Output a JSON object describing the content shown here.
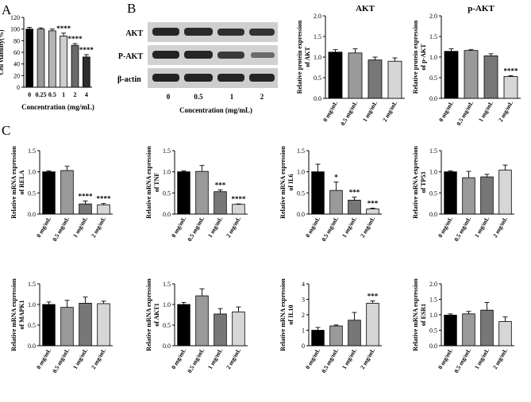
{
  "panels": {
    "A": "A",
    "B": "B",
    "C": "C"
  },
  "blot": {
    "rows": [
      "AKT",
      "P-AKT",
      "β-actin"
    ],
    "lanes": [
      "0",
      "0.5",
      "1",
      "2"
    ],
    "xlabel": "Concentration (mg/mL)"
  },
  "colors": {
    "dose0": "#000000",
    "dose05": "#9a9a9a",
    "dose1": "#777777",
    "dose2": "#d6d6d6",
    "panelA": [
      "#000000",
      "#9a9a9a",
      "#b5b5b5",
      "#cfcfcf",
      "#6a6a6a",
      "#2e2e2e"
    ]
  },
  "chart_data": [
    {
      "id": "A",
      "type": "bar",
      "title": "",
      "categories": [
        "0",
        "0.25",
        "0.5",
        "1",
        "2",
        "4"
      ],
      "values": [
        100,
        100,
        97,
        88,
        72,
        52
      ],
      "errors": [
        3,
        2,
        3,
        5,
        3,
        4
      ],
      "annotations": [
        "",
        "",
        "",
        "****",
        "****",
        "****"
      ],
      "xlabel": "Concentration (mg/mL)",
      "ylabel": "Cell viability(%)",
      "ylim": [
        0,
        120
      ],
      "yticks": [
        "0",
        "20",
        "40",
        "60",
        "80",
        "100",
        "120"
      ]
    },
    {
      "id": "AKT",
      "type": "bar",
      "title": "AKT",
      "categories": [
        "0 mg/mL",
        "0.5 mg/mL",
        "1 mg/mL",
        "2 mg/mL"
      ],
      "values": [
        1.12,
        1.1,
        0.93,
        0.9
      ],
      "errors": [
        0.06,
        0.1,
        0.07,
        0.08
      ],
      "annotations": [
        "",
        "",
        "",
        ""
      ],
      "xlabel": "",
      "ylabel": "Relative protein expression of AKT",
      "ylim": [
        0,
        2.0
      ],
      "yticks": [
        "0.0",
        "0.5",
        "1.0",
        "1.5",
        "2.0"
      ]
    },
    {
      "id": "pAKT",
      "type": "bar",
      "title": "p-AKT",
      "categories": [
        "0 mg/mL",
        "0.5 mg/mL",
        "1 mg/mL",
        "2 mg/mL"
      ],
      "values": [
        1.14,
        1.16,
        1.03,
        0.53
      ],
      "errors": [
        0.06,
        0.02,
        0.05,
        0.02
      ],
      "annotations": [
        "",
        "",
        "",
        "****"
      ],
      "xlabel": "",
      "ylabel": "Relative protein expression of p-AKT",
      "ylim": [
        0,
        2.0
      ],
      "yticks": [
        "0.0",
        "0.5",
        "1.0",
        "1.5",
        "2.0"
      ]
    },
    {
      "id": "RELA",
      "type": "bar",
      "title": "",
      "categories": [
        "0 mg/mL",
        "0.5 mg/mL",
        "1 mg/mL",
        "2 mg/mL"
      ],
      "values": [
        1.0,
        1.03,
        0.24,
        0.22
      ],
      "errors": [
        0.02,
        0.1,
        0.07,
        0.03
      ],
      "annotations": [
        "",
        "",
        "****",
        "****"
      ],
      "xlabel": "",
      "ylabel": "Relative mRNA expression of RELA",
      "ylim": [
        0,
        1.5
      ],
      "yticks": [
        "0.0",
        "0.5",
        "1.0",
        "1.5"
      ]
    },
    {
      "id": "TNF",
      "type": "bar",
      "title": "",
      "categories": [
        "0 mg/mL",
        "0.5 mg/mL",
        "1 mg/mL",
        "2 mg/mL"
      ],
      "values": [
        1.0,
        1.01,
        0.53,
        0.23
      ],
      "errors": [
        0.02,
        0.14,
        0.04,
        0.01
      ],
      "annotations": [
        "",
        "",
        "***",
        "****"
      ],
      "xlabel": "",
      "ylabel": "Relative mRNA expression of TNF",
      "ylim": [
        0,
        1.5
      ],
      "yticks": [
        "0.0",
        "0.5",
        "1.0",
        "1.5"
      ]
    },
    {
      "id": "IL6",
      "type": "bar",
      "title": "",
      "categories": [
        "0 mg/mL",
        "0.5 mg/mL",
        "1 mg/mL",
        "2 mg/mL"
      ],
      "values": [
        1.0,
        0.56,
        0.33,
        0.12
      ],
      "errors": [
        0.18,
        0.2,
        0.07,
        0.02
      ],
      "annotations": [
        "",
        "*",
        "***",
        "***"
      ],
      "xlabel": "",
      "ylabel": "Relative mRNA expression of IL6",
      "ylim": [
        0,
        1.5
      ],
      "yticks": [
        "0.0",
        "0.5",
        "1.0",
        "1.5"
      ]
    },
    {
      "id": "TP53",
      "type": "bar",
      "title": "",
      "categories": [
        "0 mg/mL",
        "0.5 mg/mL",
        "1 mg/mL",
        "2 mg/mL"
      ],
      "values": [
        1.0,
        0.86,
        0.88,
        1.04
      ],
      "errors": [
        0.02,
        0.15,
        0.06,
        0.12
      ],
      "annotations": [
        "",
        "",
        "",
        ""
      ],
      "xlabel": "",
      "ylabel": "Relative mRNA expression of TP53",
      "ylim": [
        0,
        1.5
      ],
      "yticks": [
        "0.0",
        "0.5",
        "1.0",
        "1.5"
      ]
    },
    {
      "id": "MAPK1",
      "type": "bar",
      "title": "",
      "categories": [
        "0 mg/mL",
        "0.5 mg/mL",
        "1 mg/mL",
        "2 mg/mL"
      ],
      "values": [
        1.0,
        0.93,
        1.03,
        1.02
      ],
      "errors": [
        0.06,
        0.17,
        0.15,
        0.06
      ],
      "annotations": [
        "",
        "",
        "",
        ""
      ],
      "xlabel": "",
      "ylabel": "Relative mRNA expression of MAPK1",
      "ylim": [
        0,
        1.5
      ],
      "yticks": [
        "0.0",
        "0.5",
        "1.0",
        "1.5"
      ]
    },
    {
      "id": "AKT1",
      "type": "bar",
      "title": "",
      "categories": [
        "0 mg/mL",
        "0.5 mg/mL",
        "1 mg/mL",
        "2 mg/mL"
      ],
      "values": [
        1.0,
        1.21,
        0.77,
        0.82
      ],
      "errors": [
        0.05,
        0.17,
        0.13,
        0.12
      ],
      "annotations": [
        "",
        "",
        "",
        ""
      ],
      "xlabel": "",
      "ylabel": "Relative mRNA expression of AKT1",
      "ylim": [
        0,
        1.5
      ],
      "yticks": [
        "0.0",
        "0.5",
        "1.0",
        "1.5"
      ]
    },
    {
      "id": "IL10",
      "type": "bar",
      "title": "",
      "categories": [
        "0 mg/mL",
        "0.5 mg/mL",
        "1 mg/mL",
        "2 mg/mL"
      ],
      "values": [
        1.0,
        1.28,
        1.65,
        2.75
      ],
      "errors": [
        0.18,
        0.06,
        0.5,
        0.15
      ],
      "annotations": [
        "",
        "",
        "",
        "***"
      ],
      "xlabel": "",
      "ylabel": "Relative mRNA expression of IL10",
      "ylim": [
        0,
        4
      ],
      "yticks": [
        "0",
        "1",
        "2",
        "3",
        "4"
      ]
    },
    {
      "id": "ESR1",
      "type": "bar",
      "title": "",
      "categories": [
        "0 mg/mL",
        "0.5 mg/mL",
        "1 mg/mL",
        "2 mg/mL"
      ],
      "values": [
        0.99,
        1.03,
        1.15,
        0.78
      ],
      "errors": [
        0.04,
        0.08,
        0.25,
        0.15
      ],
      "annotations": [
        "",
        "",
        "",
        ""
      ],
      "xlabel": "",
      "ylabel": "Relative mRNA expression of ESR1",
      "ylim": [
        0,
        2.0
      ],
      "yticks": [
        "0.0",
        "0.5",
        "1.0",
        "1.5",
        "2.0"
      ]
    }
  ]
}
